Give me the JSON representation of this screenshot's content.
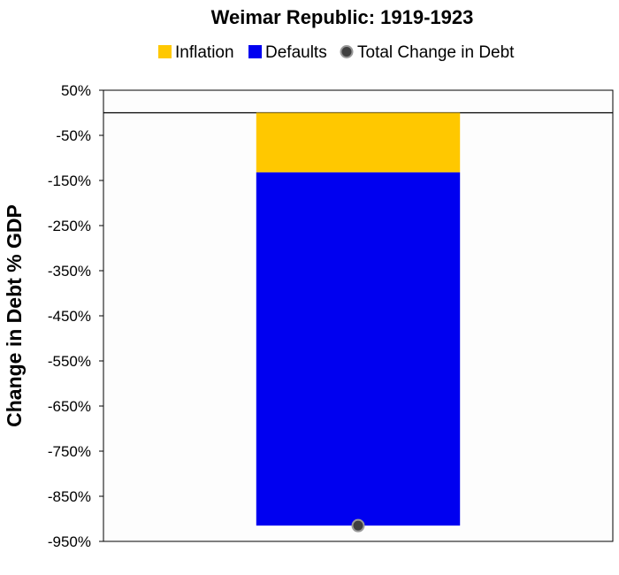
{
  "chart_data": {
    "type": "bar",
    "title": "Weimar Republic: 1919-1923",
    "xlabel": "",
    "ylabel": "Change in Debt % GDP",
    "ylim": [
      -950,
      50
    ],
    "yticks": [
      50,
      -50,
      -150,
      -250,
      -350,
      -450,
      -550,
      -650,
      -750,
      -850,
      -950
    ],
    "ytick_labels": [
      "50%",
      "-50%",
      "-150%",
      "-250%",
      "-350%",
      "-450%",
      "-550%",
      "-650%",
      "-750%",
      "-850%",
      "-950%"
    ],
    "stacked": true,
    "legend_position": "top",
    "grid": false,
    "categories": [
      ""
    ],
    "series": [
      {
        "name": "Inflation",
        "kind": "bar",
        "color": "#FFC800",
        "values": [
          -132
        ]
      },
      {
        "name": "Defaults",
        "kind": "bar",
        "color": "#0000F0",
        "values": [
          -783
        ]
      },
      {
        "name": "Total Change in Debt",
        "kind": "marker",
        "color": "#404040",
        "values": [
          -915
        ]
      }
    ]
  }
}
